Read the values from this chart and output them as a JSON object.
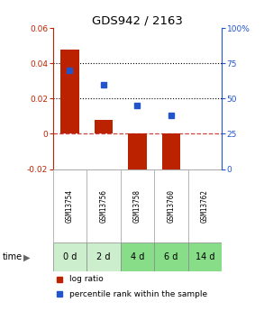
{
  "title": "GDS942 / 2163",
  "categories": [
    "GSM13754",
    "GSM13756",
    "GSM13758",
    "GSM13760",
    "GSM13762"
  ],
  "time_labels": [
    "0 d",
    "2 d",
    "4 d",
    "6 d",
    "14 d"
  ],
  "log_ratio": [
    0.048,
    0.008,
    -0.025,
    -0.027,
    0.0
  ],
  "percentile_rank": [
    70,
    60,
    45,
    38,
    null
  ],
  "ylim_left": [
    -0.02,
    0.06
  ],
  "ylim_right": [
    0,
    100
  ],
  "bar_color": "#bb2200",
  "square_color": "#2255cc",
  "dotted_line_y": [
    0.04,
    0.02
  ],
  "zero_line_color": "#cc4444",
  "bg_plot": "#ffffff",
  "bg_gsm": "#cccccc",
  "bg_time_light": "#cceecc",
  "bg_time_dark": "#88dd88",
  "time_colors_idx": [
    0,
    0,
    1,
    1,
    1
  ],
  "legend_log": "log ratio",
  "legend_pct": "percentile rank within the sample",
  "figsize": [
    2.93,
    3.45
  ],
  "dpi": 100
}
